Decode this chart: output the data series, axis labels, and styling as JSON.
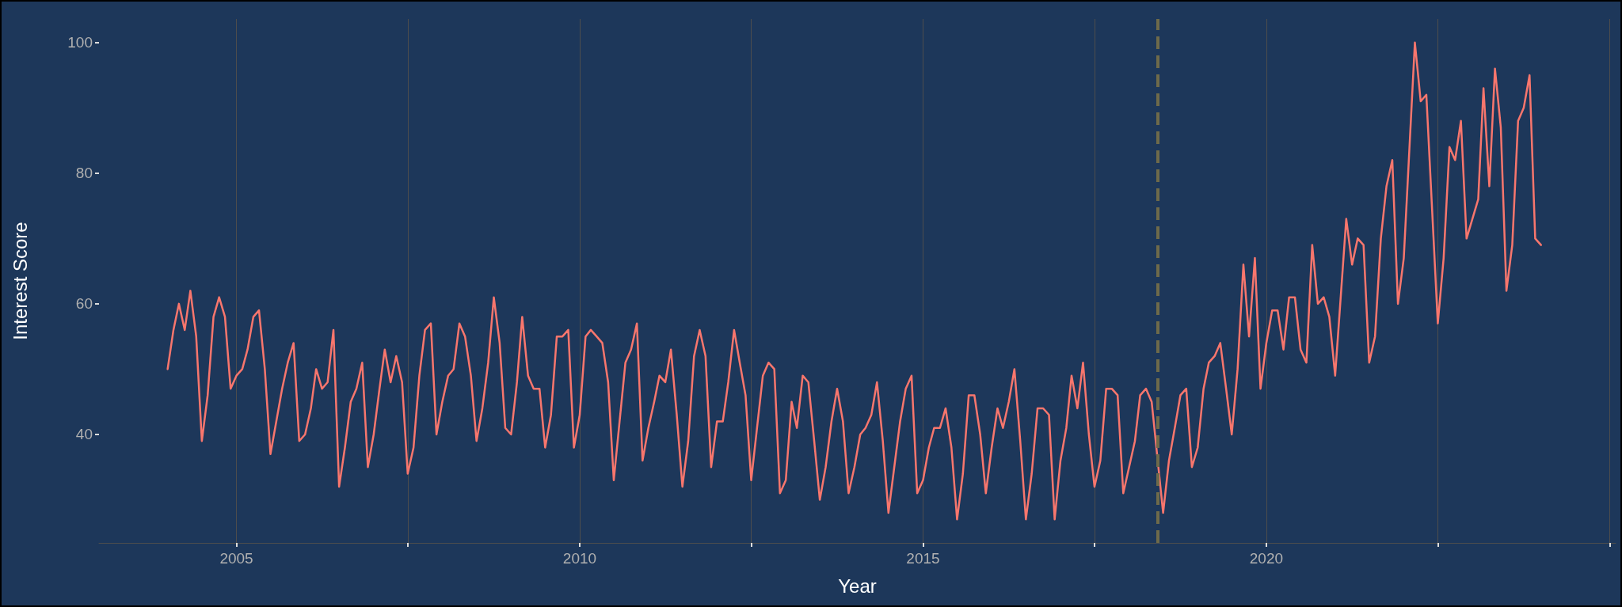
{
  "chart_data": {
    "type": "line",
    "xlabel": "Year",
    "ylabel": "Interest Score",
    "x": [
      "2004-01",
      "2004-02",
      "2004-03",
      "2004-04",
      "2004-05",
      "2004-06",
      "2004-07",
      "2004-08",
      "2004-09",
      "2004-10",
      "2004-11",
      "2004-12",
      "2005-01",
      "2005-02",
      "2005-03",
      "2005-04",
      "2005-05",
      "2005-06",
      "2005-07",
      "2005-08",
      "2005-09",
      "2005-10",
      "2005-11",
      "2005-12",
      "2006-01",
      "2006-02",
      "2006-03",
      "2006-04",
      "2006-05",
      "2006-06",
      "2006-07",
      "2006-08",
      "2006-09",
      "2006-10",
      "2006-11",
      "2006-12",
      "2007-01",
      "2007-02",
      "2007-03",
      "2007-04",
      "2007-05",
      "2007-06",
      "2007-07",
      "2007-08",
      "2007-09",
      "2007-10",
      "2007-11",
      "2007-12",
      "2008-01",
      "2008-02",
      "2008-03",
      "2008-04",
      "2008-05",
      "2008-06",
      "2008-07",
      "2008-08",
      "2008-09",
      "2008-10",
      "2008-11",
      "2008-12",
      "2009-01",
      "2009-02",
      "2009-03",
      "2009-04",
      "2009-05",
      "2009-06",
      "2009-07",
      "2009-08",
      "2009-09",
      "2009-10",
      "2009-11",
      "2009-12",
      "2010-01",
      "2010-02",
      "2010-03",
      "2010-04",
      "2010-05",
      "2010-06",
      "2010-07",
      "2010-08",
      "2010-09",
      "2010-10",
      "2010-11",
      "2010-12",
      "2011-01",
      "2011-02",
      "2011-03",
      "2011-04",
      "2011-05",
      "2011-06",
      "2011-07",
      "2011-08",
      "2011-09",
      "2011-10",
      "2011-11",
      "2011-12",
      "2012-01",
      "2012-02",
      "2012-03",
      "2012-04",
      "2012-05",
      "2012-06",
      "2012-07",
      "2012-08",
      "2012-09",
      "2012-10",
      "2012-11",
      "2012-12",
      "2013-01",
      "2013-02",
      "2013-03",
      "2013-04",
      "2013-05",
      "2013-06",
      "2013-07",
      "2013-08",
      "2013-09",
      "2013-10",
      "2013-11",
      "2013-12",
      "2014-01",
      "2014-02",
      "2014-03",
      "2014-04",
      "2014-05",
      "2014-06",
      "2014-07",
      "2014-08",
      "2014-09",
      "2014-10",
      "2014-11",
      "2014-12",
      "2015-01",
      "2015-02",
      "2015-03",
      "2015-04",
      "2015-05",
      "2015-06",
      "2015-07",
      "2015-08",
      "2015-09",
      "2015-10",
      "2015-11",
      "2015-12",
      "2016-01",
      "2016-02",
      "2016-03",
      "2016-04",
      "2016-05",
      "2016-06",
      "2016-07",
      "2016-08",
      "2016-09",
      "2016-10",
      "2016-11",
      "2016-12",
      "2017-01",
      "2017-02",
      "2017-03",
      "2017-04",
      "2017-05",
      "2017-06",
      "2017-07",
      "2017-08",
      "2017-09",
      "2017-10",
      "2017-11",
      "2017-12",
      "2018-01",
      "2018-02",
      "2018-03",
      "2018-04",
      "2018-05",
      "2018-07",
      "2018-08",
      "2018-09",
      "2018-10",
      "2018-11",
      "2018-12",
      "2019-01",
      "2019-02",
      "2019-03",
      "2019-04",
      "2019-05",
      "2019-06",
      "2019-07",
      "2019-08",
      "2019-09",
      "2019-10",
      "2019-11",
      "2019-12",
      "2020-01",
      "2020-02",
      "2020-03",
      "2020-04",
      "2020-05",
      "2020-06",
      "2020-07",
      "2020-08",
      "2020-09",
      "2020-10",
      "2020-11",
      "2020-12",
      "2021-01",
      "2021-03",
      "2021-04",
      "2021-05",
      "2021-06",
      "2021-07",
      "2021-08",
      "2021-09",
      "2021-10",
      "2021-11",
      "2021-12",
      "2022-01",
      "2022-03",
      "2022-04",
      "2022-05",
      "2022-07",
      "2022-08",
      "2022-09",
      "2022-10",
      "2022-11",
      "2022-12",
      "2023-01",
      "2023-02",
      "2023-03",
      "2023-04",
      "2023-05",
      "2023-06",
      "2023-07",
      "2023-08",
      "2023-09",
      "2023-10",
      "2023-11",
      "2023-12",
      "2024-01"
    ],
    "series": [
      {
        "color": "#f8766d",
        "values": [
          50,
          56,
          60,
          56,
          62,
          55,
          39,
          46,
          58,
          61,
          58,
          47,
          49,
          50,
          53,
          58,
          59,
          50,
          37,
          42,
          47,
          51,
          54,
          39,
          40,
          44,
          50,
          47,
          48,
          56,
          32,
          38,
          45,
          47,
          51,
          35,
          40,
          47,
          53,
          48,
          52,
          48,
          34,
          38,
          49,
          56,
          57,
          40,
          45,
          49,
          50,
          57,
          55,
          49,
          39,
          44,
          51,
          61,
          54,
          41,
          40,
          48,
          58,
          49,
          47,
          47,
          38,
          43,
          55,
          55,
          56,
          38,
          43,
          55,
          56,
          55,
          54,
          48,
          33,
          42,
          51,
          53,
          57,
          36,
          41,
          45,
          49,
          48,
          53,
          43,
          32,
          39,
          52,
          56,
          52,
          35,
          42,
          42,
          48,
          56,
          51,
          46,
          33,
          41,
          49,
          51,
          50,
          31,
          33,
          45,
          41,
          49,
          48,
          39,
          30,
          35,
          42,
          47,
          42,
          31,
          35,
          40,
          41,
          43,
          48,
          39,
          28,
          35,
          42,
          47,
          49,
          31,
          33,
          38,
          41,
          41,
          44,
          38,
          27,
          34,
          46,
          46,
          40,
          31,
          38,
          44,
          41,
          45,
          50,
          39,
          27,
          34,
          44,
          44,
          43,
          27,
          36,
          41,
          49,
          44,
          51,
          40,
          32,
          36,
          47,
          47,
          46,
          31,
          35,
          39,
          46,
          47,
          45,
          28,
          36,
          41,
          46,
          47,
          35,
          38,
          47,
          51,
          52,
          54,
          47,
          40,
          50,
          66,
          55,
          67,
          47,
          54,
          59,
          59,
          53,
          61,
          61,
          53,
          51,
          69,
          60,
          61,
          58,
          49,
          73,
          66,
          70,
          69,
          51,
          55,
          70,
          78,
          82,
          60,
          67,
          100,
          91,
          92,
          57,
          67,
          84,
          82,
          88,
          70,
          73,
          76,
          93,
          78,
          96,
          87,
          62,
          69,
          88,
          90,
          95,
          70,
          69
        ]
      }
    ],
    "xlim": [
      "2003-01",
      "2025-02"
    ],
    "xticks": [
      {
        "value": "2005",
        "label": "2005"
      },
      {
        "value": "2007-07",
        "label": null
      },
      {
        "value": "2010",
        "label": "2010"
      },
      {
        "value": "2012-07",
        "label": null
      },
      {
        "value": "2015",
        "label": "2015"
      },
      {
        "value": "2017-07",
        "label": null
      },
      {
        "value": "2020",
        "label": "2020"
      },
      {
        "value": "2022-07",
        "label": null
      },
      {
        "value": "2025",
        "label": null
      }
    ],
    "ylim": [
      23.4,
      103.6
    ],
    "yticks": [
      40,
      60,
      80,
      100
    ],
    "grid": "x",
    "marker": "none",
    "line_style": "solid",
    "ref_lines": [
      {
        "axis": "x",
        "value": "2018-06",
        "color": "#6e6a4a",
        "line_style": "dashed"
      }
    ]
  }
}
